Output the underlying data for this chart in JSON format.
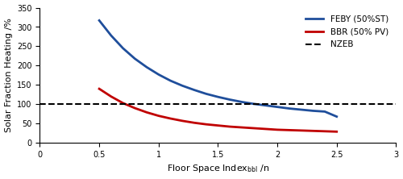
{
  "title": "",
  "xlabel_main": "Floor Space Index",
  "xlabel_sub": "bbl",
  "xlabel_end": " /n",
  "ylabel": "Solar Fraction Heating /%",
  "xlim": [
    0,
    3
  ],
  "ylim": [
    0,
    350
  ],
  "xticks": [
    0,
    0.5,
    1,
    1.5,
    2,
    2.5,
    3
  ],
  "yticks": [
    0,
    50,
    100,
    150,
    200,
    250,
    300,
    350
  ],
  "nzeb_y": 100,
  "feby_color": "#1F4E9B",
  "bbr_color": "#C00000",
  "nzeb_color": "#000000",
  "feby_label": "FEBY (50%ST)",
  "bbr_label": "BBR (50% PV)",
  "nzeb_label": "NZEB",
  "feby_x": [
    0.5,
    0.6,
    0.7,
    0.8,
    0.9,
    1.0,
    1.1,
    1.2,
    1.3,
    1.4,
    1.5,
    1.6,
    1.7,
    1.8,
    1.9,
    2.0,
    2.1,
    2.2,
    2.3,
    2.4,
    2.5
  ],
  "feby_y": [
    317,
    278,
    245,
    218,
    196,
    177,
    161,
    148,
    137,
    127,
    119,
    112,
    106,
    101,
    97,
    93,
    89,
    86,
    83,
    81,
    68
  ],
  "bbr_x": [
    0.5,
    0.6,
    0.7,
    0.8,
    0.9,
    1.0,
    1.1,
    1.2,
    1.3,
    1.4,
    1.5,
    1.6,
    1.7,
    1.8,
    1.9,
    2.0,
    2.1,
    2.2,
    2.3,
    2.4,
    2.5
  ],
  "bbr_y": [
    140,
    120,
    103,
    90,
    79,
    70,
    63,
    57,
    52,
    48,
    45,
    42,
    40,
    38,
    36,
    34,
    33,
    32,
    31,
    30,
    29
  ],
  "line_width": 2.0,
  "legend_fontsize": 7.5,
  "axis_fontsize": 8,
  "tick_fontsize": 7
}
